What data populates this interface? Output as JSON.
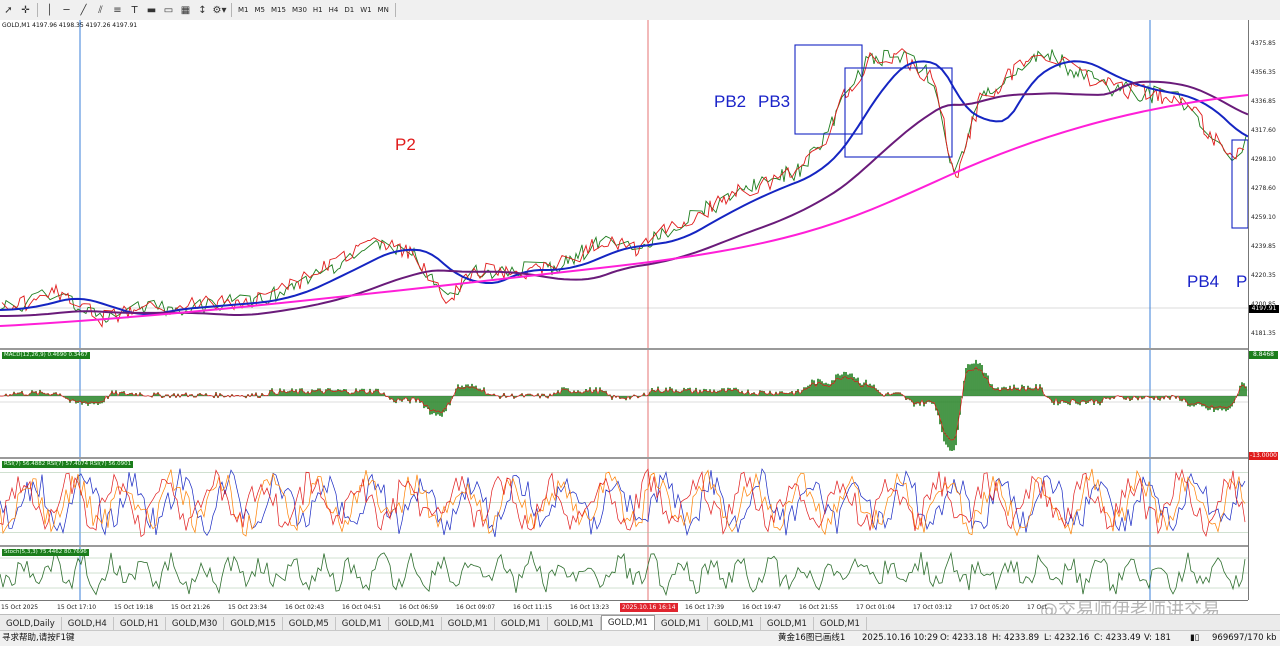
{
  "toolbar": {
    "icons": [
      "cursor-icon",
      "crosshair-icon",
      "vertical-line-icon",
      "horizontal-line-icon",
      "trend-line-icon",
      "channel-icon",
      "fibonacci-icon",
      "text-icon",
      "label-icon",
      "rectangle-icon",
      "grid-icon",
      "arrow-icon",
      "objects-dropdown-icon"
    ],
    "timeframes": [
      "M1",
      "M5",
      "M15",
      "M30",
      "H1",
      "H4",
      "D1",
      "W1",
      "MN"
    ]
  },
  "chart": {
    "symbol_info": "GOLD,M1  4197.96 4198.35 4197.26 4197.91",
    "current_price": "4197.91",
    "price_labels": [
      "4375.85",
      "4356.35",
      "4336.85",
      "4317.60",
      "4298.10",
      "4278.60",
      "4259.10",
      "4239.85",
      "4220.35",
      "4200.85",
      "4181.35"
    ],
    "annotations": [
      {
        "text": "P2",
        "color": "#e01b1b"
      },
      {
        "text": "PB2",
        "color": "#1a23c9"
      },
      {
        "text": "PB3",
        "color": "#1a23c9"
      },
      {
        "text": "PB4",
        "color": "#1a23c9"
      },
      {
        "text": "P",
        "color": "#1a23c9"
      }
    ],
    "colors": {
      "candle_up": "#1e7d1e",
      "candle_down": "#e01b1b",
      "ma_fast": "#1525c2",
      "ma_mid": "#6a1b7a",
      "ma_slow": "#ff1fd8",
      "rect": "#1525c2",
      "vline_blue": "#3a7fd8",
      "vline_red": "#e05050"
    }
  },
  "macd": {
    "label": "MACD(12,26,9) 0.4690 0.3467",
    "top_value": "8.8468",
    "bottom_value": "-13.0000",
    "colors": {
      "hist": "#1b7d1b",
      "signal": "#e01b1b"
    }
  },
  "rsi": {
    "label": "RSI(7) 56.4882  RSI(7) 57.4074  RSI(7) 56.0901",
    "colors": {
      "a": "#1525c2",
      "b": "#ff7f00",
      "c": "#e01b1b"
    }
  },
  "stoch": {
    "label": "Stoch(5,3,3) 75.4462 80.7696",
    "colors": {
      "main": "#2e6e2e"
    }
  },
  "time_axis": {
    "labels": [
      "15 Oct 2025",
      "15 Oct 17:10",
      "15 Oct 19:18",
      "15 Oct 21:26",
      "15 Oct 23:34",
      "16 Oct 02:43",
      "16 Oct 04:51",
      "16 Oct 06:59",
      "16 Oct 09:07",
      "16 Oct 11:15",
      "16 Oct 13:23",
      "",
      "16 Oct 17:39",
      "16 Oct 19:47",
      "16 Oct 21:55",
      "17 Oct 01:04",
      "17 Oct 03:12",
      "17 Oct 05:20",
      "17 Oct"
    ],
    "highlight": "2025.10.16 16:14"
  },
  "tabs": [
    "GOLD,Daily",
    "GOLD,H4",
    "GOLD,H1",
    "GOLD,M30",
    "GOLD,M15",
    "GOLD,M5",
    "GOLD,M1",
    "GOLD,M1",
    "GOLD,M1",
    "GOLD,M1",
    "GOLD,M1",
    "GOLD,M1",
    "GOLD,M1",
    "GOLD,M1",
    "GOLD,M1",
    "GOLD,M1"
  ],
  "active_tab_index": 11,
  "status": {
    "help": "寻求帮助,请按F1键",
    "template": "黄金16图已画线1",
    "datetime": "2025.10.16 10:29",
    "open": "O: 4233.18",
    "high": "H: 4233.89",
    "low": "L: 4232.16",
    "close": "C: 4233.49",
    "volume": "V: 181",
    "traffic": "969697/170 kb"
  },
  "watermark": "@交易师伊老师讲交易"
}
